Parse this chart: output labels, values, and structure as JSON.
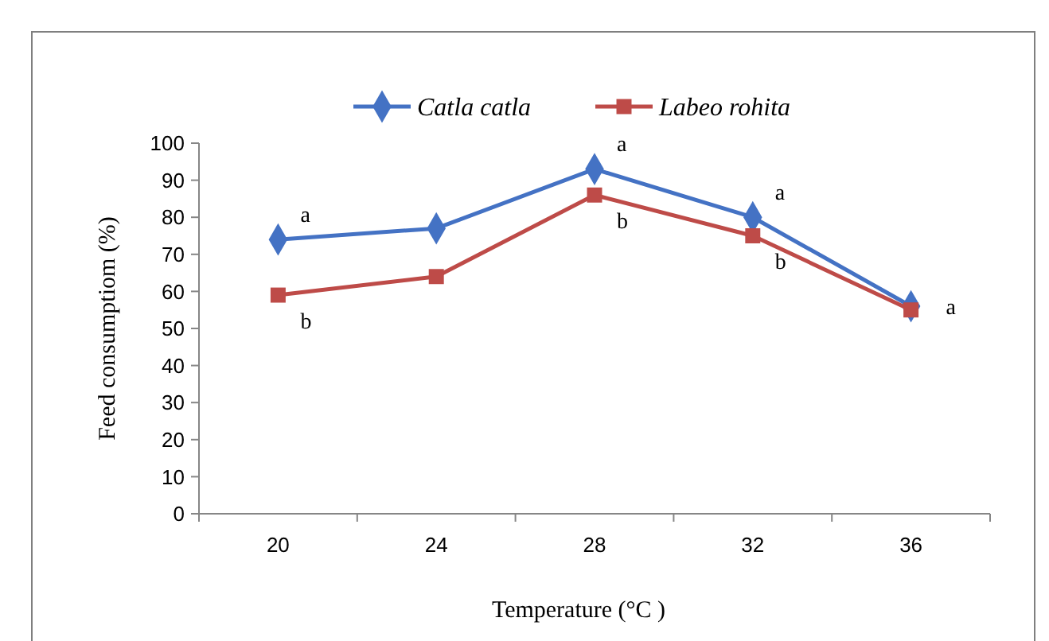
{
  "chart_data": {
    "type": "line",
    "xlabel": "Temperature (°C )",
    "ylabel": "Feed consumptiom (%)",
    "categories": [
      "20",
      "24",
      "28",
      "32",
      "36"
    ],
    "series": [
      {
        "name": "Catla catla",
        "color": "#4472c4",
        "values": [
          74,
          77,
          93,
          80,
          56
        ],
        "marker": "diamond"
      },
      {
        "name": "Labeo rohita",
        "color": "#be4b48",
        "values": [
          59,
          64,
          86,
          75,
          55
        ],
        "marker": "square"
      }
    ],
    "ylim": [
      0,
      100
    ],
    "yticks": [
      0,
      10,
      20,
      30,
      40,
      50,
      60,
      70,
      80,
      90,
      100
    ],
    "legend": "top",
    "annotations": [
      {
        "text": "a",
        "x": "20",
        "y": 74
      },
      {
        "text": "b",
        "x": "20",
        "y": 59
      },
      {
        "text": "a",
        "x": "28",
        "y": 93
      },
      {
        "text": "b",
        "x": "28",
        "y": 86
      },
      {
        "text": "a",
        "x": "32",
        "y": 80
      },
      {
        "text": "b",
        "x": "32",
        "y": 75
      },
      {
        "text": "a",
        "x": "36",
        "y": 56
      }
    ]
  }
}
